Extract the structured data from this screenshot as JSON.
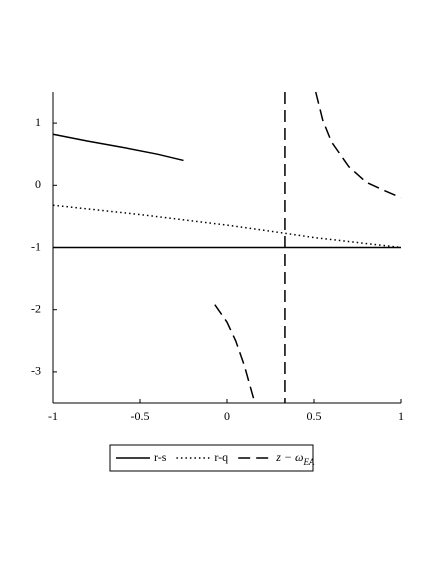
{
  "chart_data": {
    "type": "line",
    "xlim": [
      -1,
      1
    ],
    "ylim": [
      -3.5,
      1.5
    ],
    "xticks": [
      -1,
      -0.5,
      0,
      0.5,
      1
    ],
    "yticks": [
      -3,
      -2,
      -1,
      0,
      1
    ],
    "grid": false,
    "legend": "bottom",
    "series": [
      {
        "name": "r-s",
        "color": "#000000",
        "style": "solid",
        "x": [
          -1,
          -0.8,
          -0.6,
          -0.4,
          -0.25,
          null,
          -1,
          1
        ],
        "values": [
          0.82,
          0.71,
          0.61,
          0.5,
          0.4,
          null,
          -1,
          -1
        ]
      },
      {
        "name": "r-q",
        "color": "#000000",
        "style": "dotted",
        "x": [
          -1,
          -0.5,
          0,
          0.33,
          0.5,
          1
        ],
        "values": [
          -0.32,
          -0.47,
          -0.64,
          -0.77,
          -0.84,
          -1
        ]
      },
      {
        "name": "z − ωEA",
        "color": "#000000",
        "style": "dashed",
        "x": [
          0.333,
          0.333,
          null,
          0.51,
          0.55,
          0.6,
          0.7,
          0.8,
          0.9,
          1,
          null,
          -0.07,
          0,
          0.05,
          0.1,
          0.14,
          0.16
        ],
        "values": [
          1.5,
          -3.5,
          null,
          1.5,
          1.05,
          0.7,
          0.3,
          0.05,
          -0.08,
          -0.2,
          null,
          -1.92,
          -2.2,
          -2.5,
          -2.9,
          -3.3,
          -3.5
        ]
      }
    ]
  }
}
